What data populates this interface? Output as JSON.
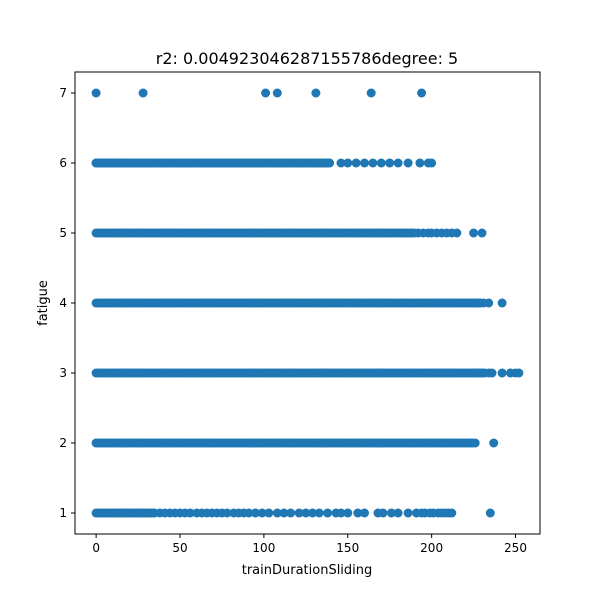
{
  "chart_data": {
    "type": "scatter",
    "title": "r2: 0.004923046287155786degree: 5",
    "xlabel": "trainDurationSliding",
    "ylabel": "fatigue",
    "xlim": [
      -12.6,
      264.6
    ],
    "ylim": [
      0.7,
      7.3
    ],
    "xticks": [
      0,
      50,
      100,
      150,
      200,
      250
    ],
    "yticks": [
      1,
      2,
      3,
      4,
      5,
      6,
      7
    ],
    "grid": false,
    "point_color": "#1f77b4",
    "series": [
      {
        "levels": [
          {
            "y": 1,
            "dense_to": 35,
            "scattered": [
              38,
              41,
              44,
              47,
              50,
              53,
              56,
              60,
              63,
              66,
              69,
              72,
              75,
              78,
              82,
              85,
              88,
              91,
              95,
              99,
              103,
              108,
              112,
              116,
              121,
              125,
              129,
              133,
              138,
              143,
              146,
              150,
              156,
              160,
              168,
              171,
              176,
              180,
              186,
              191,
              194,
              196,
              199,
              201,
              204,
              206,
              208,
              210,
              212,
              235
            ]
          },
          {
            "y": 2,
            "dense_to": 225,
            "scattered": [
              226,
              237
            ]
          },
          {
            "y": 3,
            "dense_to": 232,
            "scattered": [
              234,
              236,
              242,
              247,
              250,
              252
            ]
          },
          {
            "y": 4,
            "dense_to": 228,
            "scattered": [
              229,
              231,
              234,
              242
            ]
          },
          {
            "y": 5,
            "dense_to": 190,
            "scattered": [
              192,
              195,
              198,
              200,
              203,
              206,
              209,
              212,
              215,
              225,
              230
            ]
          },
          {
            "y": 6,
            "dense_to": 140,
            "scattered": [
              0,
              1,
              2,
              4,
              6,
              8,
              10,
              12,
              14,
              16,
              18,
              20,
              23,
              25,
              28,
              30,
              33,
              36,
              39,
              42,
              45,
              48,
              51,
              54,
              57,
              60,
              63,
              66,
              69,
              72,
              75,
              78,
              81,
              84,
              87,
              90,
              93,
              96,
              99,
              102,
              105,
              108,
              111,
              114,
              117,
              120,
              123,
              126,
              129,
              132,
              135,
              138,
              146,
              150,
              155,
              160,
              165,
              170,
              175,
              180,
              186,
              193,
              198,
              200
            ]
          },
          {
            "y": 7,
            "dense_to": null,
            "scattered": [
              0,
              28,
              101,
              108,
              131,
              164,
              194
            ]
          }
        ]
      }
    ]
  }
}
